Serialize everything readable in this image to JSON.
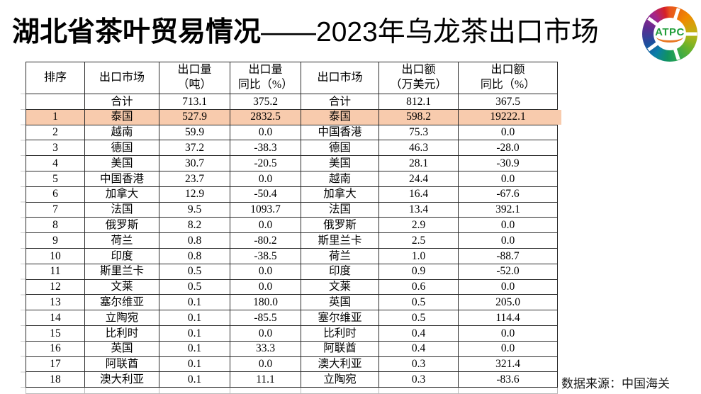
{
  "title": {
    "part1": "湖北省茶叶贸易情况",
    "part2": "——2023年乌龙茶出口市场"
  },
  "logo": {
    "text": "ATPC",
    "text_color": "#1f9d3a",
    "underline_color": "#e87722",
    "ring_colors": [
      "#e8541e",
      "#f08a00",
      "#6db32a",
      "#2fa84f",
      "#11935f",
      "#1d4f9e",
      "#5c2d91",
      "#a4258c",
      "#d62027"
    ]
  },
  "source_note": "数据来源：中国海关",
  "table": {
    "headers": [
      {
        "line1": "排序",
        "line2": ""
      },
      {
        "line1": "出口市场",
        "line2": ""
      },
      {
        "line1": "出口量",
        "line2": "（吨）"
      },
      {
        "line1": "出口量",
        "line2": "同比（%）"
      },
      {
        "line1": "出口市场",
        "line2": ""
      },
      {
        "line1": "出口额",
        "line2": "（万美元）"
      },
      {
        "line1": "出口额",
        "line2": "同比（%）"
      }
    ],
    "highlight_row_index": 1,
    "highlight_color": "#F8CBAD",
    "rows": [
      [
        "",
        "合计",
        "713.1",
        "375.2",
        "合计",
        "812.1",
        "367.5"
      ],
      [
        "1",
        "泰国",
        "527.9",
        "2832.5",
        "泰国",
        "598.2",
        "19222.1"
      ],
      [
        "2",
        "越南",
        "59.9",
        "0.0",
        "中国香港",
        "75.3",
        "0.0"
      ],
      [
        "3",
        "德国",
        "37.2",
        "-38.3",
        "德国",
        "46.3",
        "-28.0"
      ],
      [
        "4",
        "美国",
        "30.7",
        "-20.5",
        "美国",
        "28.1",
        "-30.9"
      ],
      [
        "5",
        "中国香港",
        "23.7",
        "0.0",
        "越南",
        "24.4",
        "0.0"
      ],
      [
        "6",
        "加拿大",
        "12.9",
        "-50.4",
        "加拿大",
        "16.4",
        "-67.6"
      ],
      [
        "7",
        "法国",
        "9.5",
        "1093.7",
        "法国",
        "13.4",
        "392.1"
      ],
      [
        "8",
        "俄罗斯",
        "8.2",
        "0.0",
        "俄罗斯",
        "2.9",
        "0.0"
      ],
      [
        "9",
        "荷兰",
        "0.8",
        "-80.2",
        "斯里兰卡",
        "2.5",
        "0.0"
      ],
      [
        "10",
        "印度",
        "0.8",
        "-38.5",
        "荷兰",
        "1.0",
        "-88.7"
      ],
      [
        "11",
        "斯里兰卡",
        "0.5",
        "0.0",
        "印度",
        "0.9",
        "-52.0"
      ],
      [
        "12",
        "文莱",
        "0.5",
        "0.0",
        "文莱",
        "0.6",
        "0.0"
      ],
      [
        "13",
        "塞尔维亚",
        "0.1",
        "180.0",
        "英国",
        "0.5",
        "205.0"
      ],
      [
        "14",
        "立陶宛",
        "0.1",
        "-85.5",
        "塞尔维亚",
        "0.5",
        "114.4"
      ],
      [
        "15",
        "比利时",
        "0.1",
        "0.0",
        "比利时",
        "0.4",
        "0.0"
      ],
      [
        "16",
        "英国",
        "0.1",
        "33.3",
        "阿联酋",
        "0.4",
        "0.0"
      ],
      [
        "17",
        "阿联酋",
        "0.1",
        "0.0",
        "澳大利亚",
        "0.3",
        "321.4"
      ],
      [
        "18",
        "澳大利亚",
        "0.1",
        "11.1",
        "立陶宛",
        "0.3",
        "-83.6"
      ]
    ]
  }
}
